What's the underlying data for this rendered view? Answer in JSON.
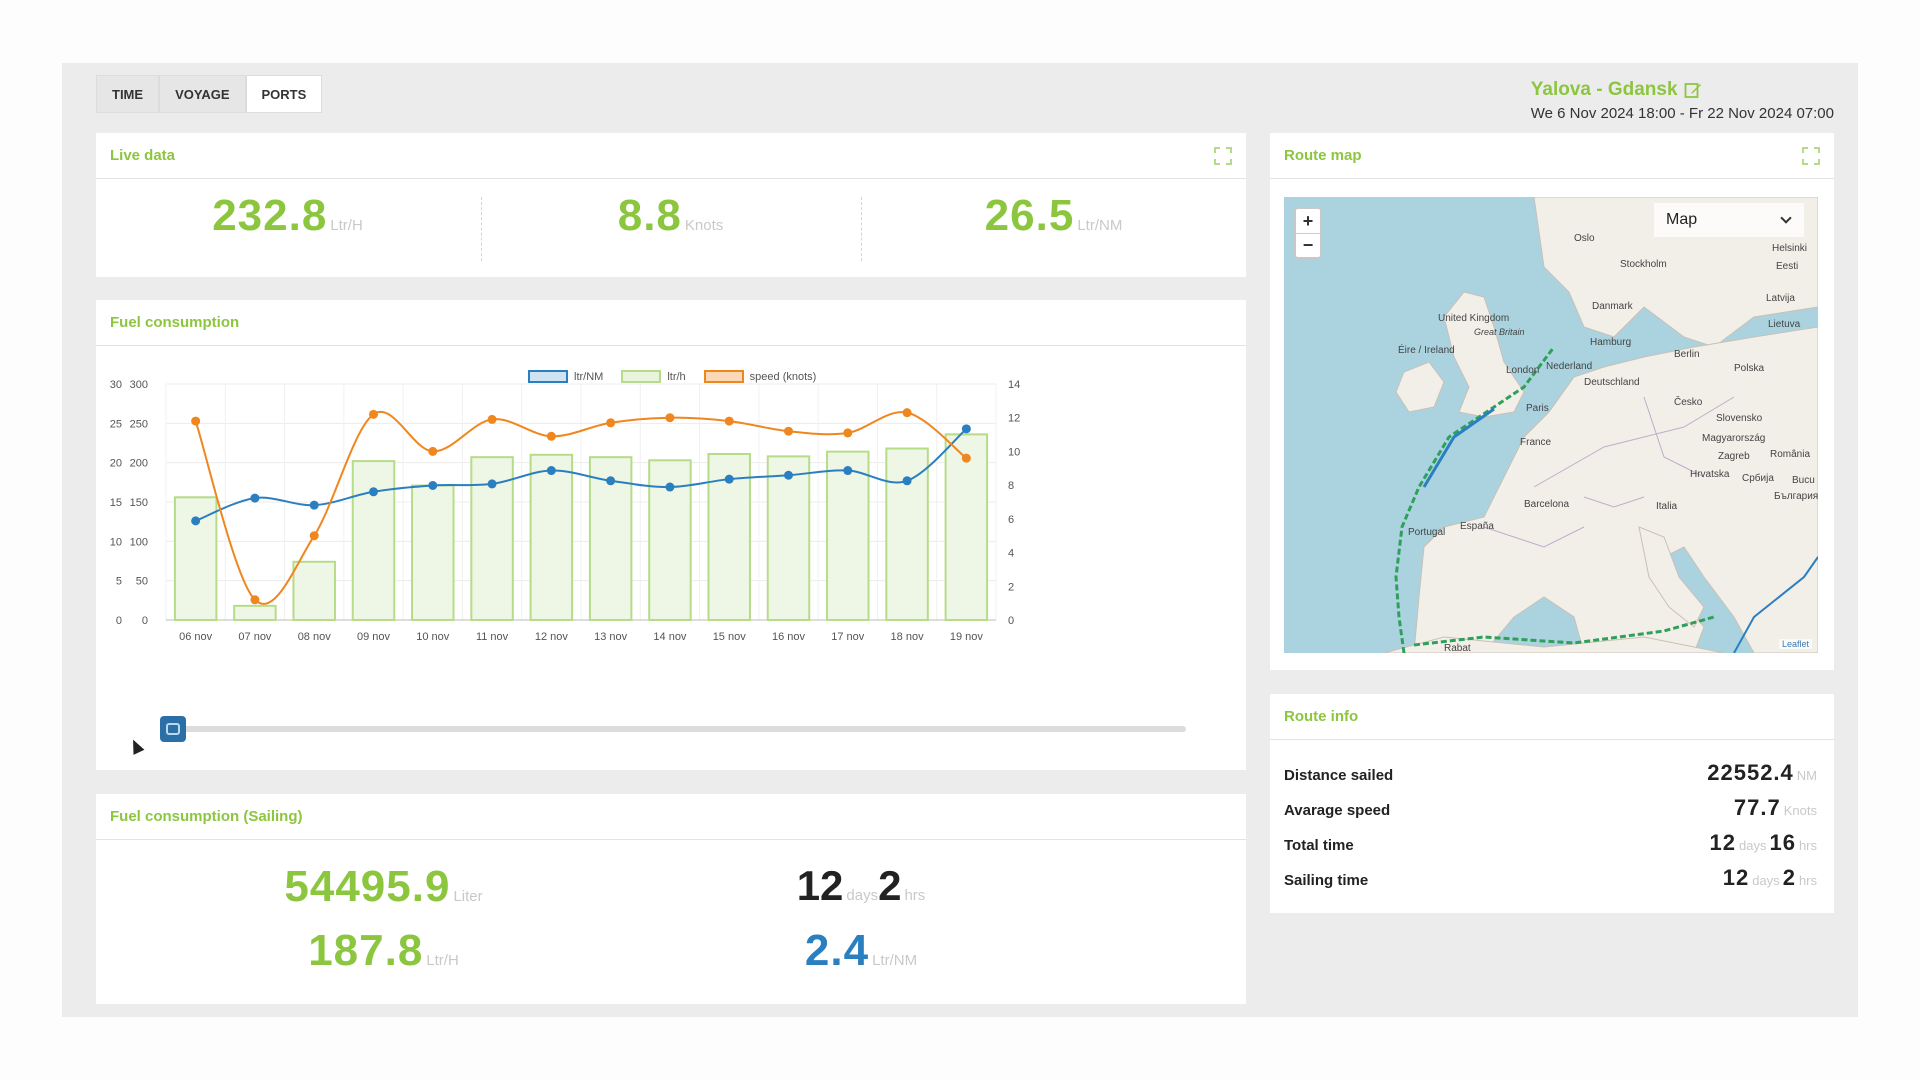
{
  "tabs": [
    {
      "label": "TIME",
      "active": false
    },
    {
      "label": "VOYAGE",
      "active": false
    },
    {
      "label": "PORTS",
      "active": true
    }
  ],
  "voyage": {
    "title": "Yalova - Gdansk",
    "dates": "We 6 Nov 2024 18:00 - Fr 22 Nov 2024 07:00"
  },
  "live_data": {
    "title": "Live data",
    "items": [
      {
        "value": "232.8",
        "unit": "Ltr/H"
      },
      {
        "value": "8.8",
        "unit": "Knots"
      },
      {
        "value": "26.5",
        "unit": "Ltr/NM"
      }
    ]
  },
  "fuel_consumption": {
    "title": "Fuel consumption"
  },
  "chart_data": {
    "type": "bar",
    "categories": [
      "06 nov",
      "07 nov",
      "08 nov",
      "09 nov",
      "10 nov",
      "11 nov",
      "12 nov",
      "13 nov",
      "14 nov",
      "15 nov",
      "16 nov",
      "17 nov",
      "18 nov",
      "19 nov"
    ],
    "series": [
      {
        "name": "ltr/NM",
        "type": "line",
        "axis": "left-inner",
        "color": "#2a7fc1",
        "values": [
          12.6,
          15.5,
          14.6,
          16.3,
          17.1,
          17.3,
          19.0,
          17.7,
          16.9,
          17.9,
          18.4,
          19.0,
          17.7,
          24.3
        ]
      },
      {
        "name": "ltr/h",
        "type": "bar",
        "axis": "left-outer",
        "color": "#b6dc8a",
        "values": [
          156,
          18,
          74,
          202,
          171,
          207,
          210,
          207,
          203,
          211,
          208,
          214,
          218,
          236
        ]
      },
      {
        "name": "speed (knots)",
        "type": "line",
        "axis": "right",
        "color": "#f0861e",
        "values": [
          11.8,
          1.2,
          5.0,
          12.2,
          10.0,
          11.9,
          10.9,
          11.7,
          12.0,
          11.8,
          11.2,
          11.1,
          12.3,
          9.6
        ]
      }
    ],
    "axes": {
      "left_inner": {
        "ticks": [
          "0",
          "5",
          "10",
          "15",
          "20",
          "25",
          "30"
        ],
        "ylim": [
          0,
          30
        ]
      },
      "left_outer": {
        "ticks": [
          "0",
          "50",
          "100",
          "150",
          "200",
          "250",
          "300"
        ],
        "ylim": [
          0,
          300
        ]
      },
      "right": {
        "ticks": [
          "0",
          "2",
          "4",
          "6",
          "8",
          "10",
          "12",
          "14"
        ],
        "ylim": [
          0,
          14
        ]
      }
    },
    "legend_position": "top-center",
    "grid": true
  },
  "sailing": {
    "title": "Fuel consumption (Sailing)",
    "total_fuel": {
      "value": "54495.9",
      "unit": "Liter"
    },
    "rate": {
      "value": "187.8",
      "unit": "Ltr/H"
    },
    "duration": {
      "days": "12",
      "days_unit": "days",
      "hrs": "2",
      "hrs_unit": "hrs"
    },
    "per_nm": {
      "value": "2.4",
      "unit": "Ltr/NM"
    }
  },
  "route_map": {
    "title": "Route map",
    "layer_select": "Map",
    "zoom_in": "+",
    "zoom_out": "−",
    "attribution": "Leaflet",
    "labels": [
      "Oslo",
      "Helsinki",
      "Stockholm",
      "Eesti",
      "Latvija",
      "Danmark",
      "Lietuva",
      "United Kingdom",
      "Great Britain",
      "Hamburg",
      "Éire / Ireland",
      "Nederland",
      "Berlin",
      "Polska",
      "London",
      "Deutschland",
      "Paris",
      "Česko",
      "Slovensko",
      "Magyarország",
      "France",
      "Zagreb",
      "România",
      "Hrvatska",
      "Србија",
      "Bucu",
      "Barcelona",
      "Italia",
      "България",
      "España",
      "Portugal",
      "Rabat"
    ]
  },
  "route_info": {
    "title": "Route info",
    "distance": {
      "label": "Distance sailed",
      "value": "22552.4",
      "unit": "NM"
    },
    "avg_speed": {
      "label": "Avarage speed",
      "value": "77.7",
      "unit": "Knots"
    },
    "total_time": {
      "label": "Total time",
      "days": "12",
      "days_unit": "days",
      "hrs": "16",
      "hrs_unit": "hrs"
    },
    "sailing_time": {
      "label": "Sailing time",
      "days": "12",
      "days_unit": "days",
      "hrs": "2",
      "hrs_unit": "hrs"
    }
  },
  "colors": {
    "accent_green": "#8cc63f",
    "accent_blue": "#2a7fc1",
    "accent_orange": "#f0861e"
  }
}
